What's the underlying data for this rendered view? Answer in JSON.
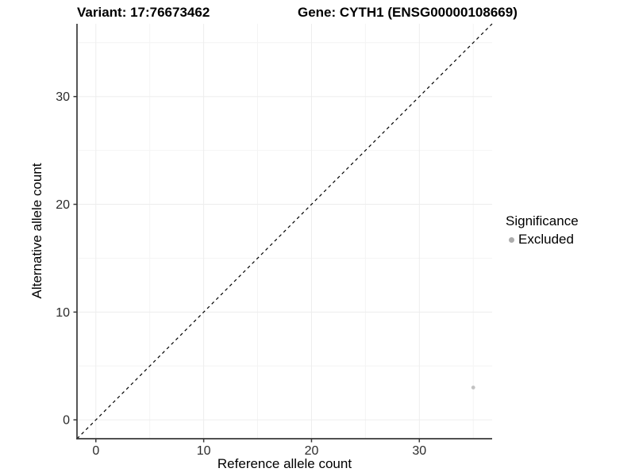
{
  "titles": {
    "left": "Variant: 17:76673462",
    "right": "Gene: CYTH1 (ENSG00000108669)"
  },
  "chart_data": {
    "type": "scatter",
    "title_left": "Variant: 17:76673462",
    "title_right": "Gene: CYTH1 (ENSG00000108669)",
    "xlabel": "Reference allele count",
    "ylabel": "Alternative allele count",
    "xlim": [
      -1.75,
      36.75
    ],
    "ylim": [
      -1.75,
      36.75
    ],
    "x_major_ticks": [
      0,
      10,
      20,
      30
    ],
    "y_major_ticks": [
      0,
      10,
      20,
      30
    ],
    "x_minor_ticks": [
      5,
      15,
      25,
      35
    ],
    "y_minor_ticks": [
      5,
      15,
      25,
      35
    ],
    "grid": "major+minor",
    "reference_line": {
      "type": "identity y=x",
      "style": "dashed",
      "color": "#000000"
    },
    "series": [
      {
        "name": "Excluded",
        "color": "#C2C2C2",
        "points": [
          {
            "x": 35,
            "y": 3
          }
        ]
      }
    ],
    "legend": {
      "title": "Significance",
      "position": "right",
      "items": [
        {
          "label": "Excluded",
          "color": "#ACACAC"
        }
      ]
    }
  },
  "colors": {
    "background": "#FFFFFF",
    "grid_major": "#EDEDED",
    "grid_minor": "#F4F4F4",
    "axis_line": "#383838",
    "tick_label": "#2B2B2B",
    "point": "#C2C2C2",
    "legend_key": "#ACACAC",
    "reference_line": "#000000"
  }
}
